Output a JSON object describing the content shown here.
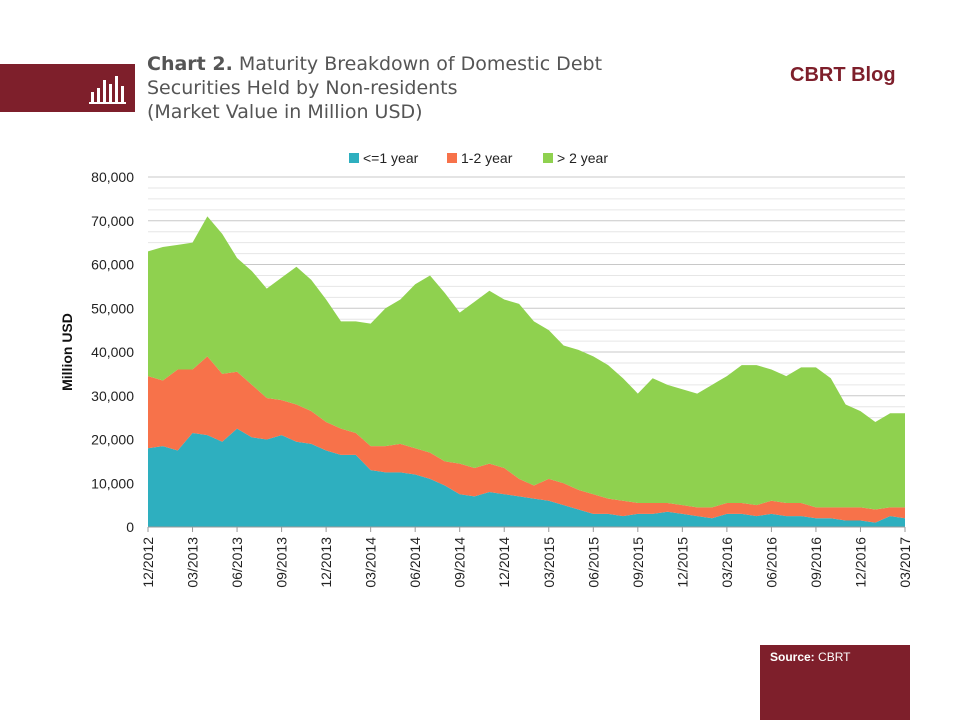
{
  "header": {
    "title_bold": "Chart 2.",
    "title_line1": "Maturity Breakdown of Domestic Debt",
    "title_line2": "Securities Held by Non-residents",
    "title_line3": "(Market Value in Million USD)",
    "blog": "CBRT Blog"
  },
  "source": {
    "label": "Source:",
    "value": "CBRT"
  },
  "colors": {
    "brand": "#7e1f2b"
  },
  "chart_data": {
    "type": "area",
    "stacked": true,
    "ylabel": "Million USD",
    "xlabel": "",
    "ylim": [
      0,
      80000
    ],
    "yticks": [
      0,
      10000,
      20000,
      30000,
      40000,
      50000,
      60000,
      70000,
      80000
    ],
    "ytick_labels": [
      "0",
      "10,000",
      "20,000",
      "30,000",
      "40,000",
      "50,000",
      "60,000",
      "70,000",
      "80,000"
    ],
    "grid": true,
    "legend_position": "top",
    "x": [
      "12/2012",
      "01/2013",
      "02/2013",
      "03/2013",
      "04/2013",
      "05/2013",
      "06/2013",
      "07/2013",
      "08/2013",
      "09/2013",
      "10/2013",
      "11/2013",
      "12/2013",
      "01/2014",
      "02/2014",
      "03/2014",
      "04/2014",
      "05/2014",
      "06/2014",
      "07/2014",
      "08/2014",
      "09/2014",
      "10/2014",
      "11/2014",
      "12/2014",
      "01/2015",
      "02/2015",
      "03/2015",
      "04/2015",
      "05/2015",
      "06/2015",
      "07/2015",
      "08/2015",
      "09/2015",
      "10/2015",
      "11/2015",
      "12/2015",
      "01/2016",
      "02/2016",
      "03/2016",
      "04/2016",
      "05/2016",
      "06/2016",
      "07/2016",
      "08/2016",
      "09/2016",
      "10/2016",
      "11/2016",
      "12/2016",
      "01/2017",
      "02/2017",
      "03/2017"
    ],
    "xtick_labels": [
      "12/2012",
      "03/2013",
      "06/2013",
      "09/2013",
      "12/2013",
      "03/2014",
      "06/2014",
      "09/2014",
      "12/2014",
      "03/2015",
      "06/2015",
      "09/2015",
      "12/2015",
      "03/2016",
      "06/2016",
      "09/2016",
      "12/2016",
      "03/2017"
    ],
    "series": [
      {
        "name": "<=1 year",
        "color": "#2eafbf",
        "values": [
          18000,
          18500,
          17500,
          21500,
          21000,
          19500,
          22500,
          20500,
          20000,
          21000,
          19500,
          19000,
          17500,
          16500,
          16500,
          13000,
          12500,
          12500,
          12000,
          11000,
          9500,
          7500,
          7000,
          8000,
          7500,
          7000,
          6500,
          6000,
          5000,
          4000,
          3000,
          3000,
          2500,
          3000,
          3000,
          3500,
          3000,
          2500,
          2000,
          3000,
          3000,
          2500,
          3000,
          2500,
          2500,
          2000,
          2000,
          1500,
          1500,
          1000,
          2500,
          2000
        ]
      },
      {
        "name": "1-2 year",
        "color": "#f7724a",
        "values": [
          16500,
          15000,
          18500,
          14500,
          18000,
          15500,
          13000,
          12000,
          9500,
          8000,
          8500,
          7500,
          6500,
          6000,
          5000,
          5500,
          6000,
          6500,
          6000,
          6000,
          5500,
          7000,
          6500,
          6500,
          6000,
          4000,
          3000,
          5000,
          5000,
          4500,
          4500,
          3500,
          3500,
          2500,
          2500,
          2000,
          2000,
          2000,
          2500,
          2500,
          2500,
          2500,
          3000,
          3000,
          3000,
          2500,
          2500,
          3000,
          3000,
          3000,
          2000,
          2500
        ]
      },
      {
        "name": "> 2 year",
        "color": "#8fd14f",
        "values": [
          28500,
          30500,
          28500,
          29000,
          32000,
          32000,
          26000,
          26000,
          25000,
          28000,
          31500,
          30000,
          28000,
          24500,
          25500,
          28000,
          31500,
          33000,
          37500,
          40500,
          38500,
          34500,
          38000,
          39500,
          38500,
          40000,
          37500,
          34000,
          31500,
          32000,
          31500,
          30500,
          28000,
          25000,
          28500,
          27000,
          26500,
          26000,
          28000,
          29000,
          31500,
          32000,
          30000,
          29000,
          31000,
          32000,
          29500,
          23500,
          22000,
          20000,
          21500,
          21500
        ]
      }
    ]
  }
}
